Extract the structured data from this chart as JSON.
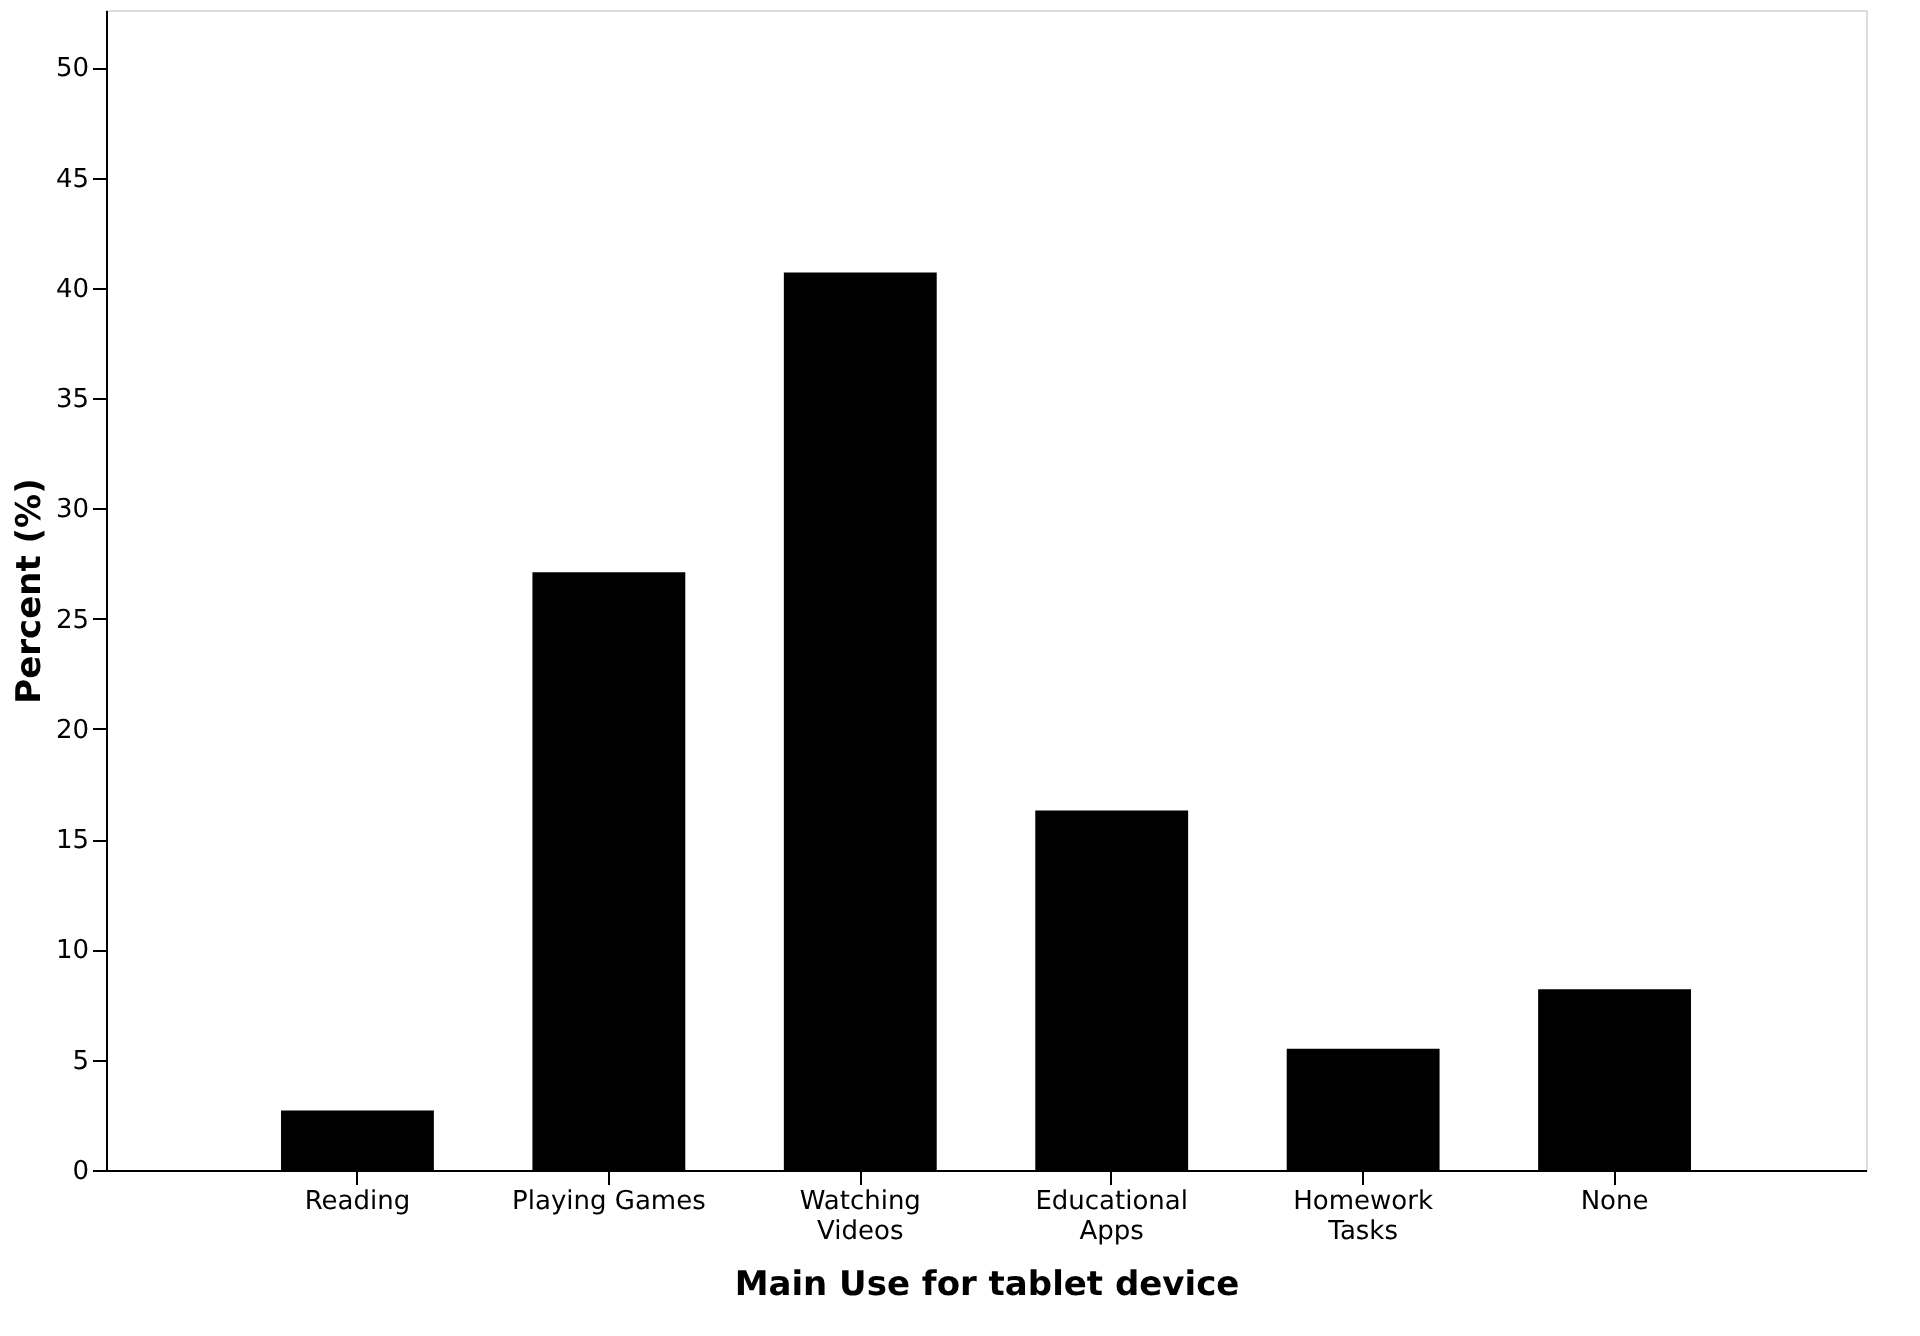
{
  "chart_data": {
    "type": "bar",
    "xlabel": "Main Use for tablet device",
    "ylabel": "Percent (%)",
    "categories": [
      "Reading",
      "Playing Games",
      "Watching Videos",
      "Educational Apps",
      "Homework Tasks",
      "None"
    ],
    "values": [
      2.7,
      27.1,
      40.7,
      16.3,
      5.5,
      8.2
    ],
    "color": "#000000",
    "ylim": [
      0,
      52.6
    ],
    "yticks": [
      0,
      5,
      10,
      15,
      20,
      25,
      30,
      35,
      40,
      45,
      50
    ],
    "grid": false
  }
}
